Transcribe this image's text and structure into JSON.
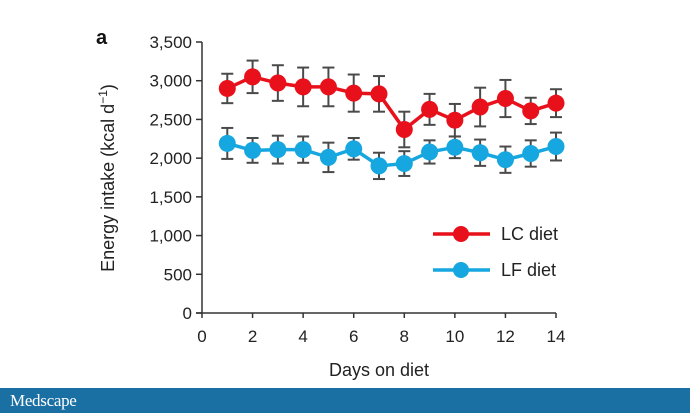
{
  "chart_data": {
    "type": "line",
    "panel_label": "a",
    "title": "",
    "xlabel": "Days on diet",
    "ylabel": "Energy intake (kcal d",
    "ylabel_superscript": "−1",
    "ylabel_close": ")",
    "xlim": [
      0,
      14
    ],
    "ylim": [
      0,
      3500
    ],
    "xticks": [
      0,
      2,
      4,
      6,
      8,
      10,
      12,
      14
    ],
    "xtick_labels": [
      "0",
      "2",
      "4",
      "6",
      "8",
      "10",
      "12",
      "14"
    ],
    "yticks": [
      0,
      500,
      1000,
      1500,
      2000,
      2500,
      3000,
      3500
    ],
    "ytick_labels": [
      "0",
      "500",
      "1,000",
      "1,500",
      "2,000",
      "2,500",
      "3,000",
      "3,500"
    ],
    "grid": false,
    "legend_position": "center-right",
    "x": [
      1,
      2,
      3,
      4,
      5,
      6,
      7,
      8,
      9,
      10,
      11,
      12,
      13,
      14
    ],
    "series": [
      {
        "name": "LC diet",
        "color": "#e8101a",
        "values": [
          2900,
          3050,
          2970,
          2920,
          2920,
          2840,
          2830,
          2370,
          2630,
          2490,
          2660,
          2770,
          2610,
          2710
        ],
        "errors": [
          190,
          210,
          230,
          250,
          250,
          240,
          230,
          230,
          200,
          210,
          250,
          240,
          170,
          180
        ]
      },
      {
        "name": "LF diet",
        "color": "#16a6e0",
        "values": [
          2190,
          2100,
          2110,
          2110,
          2010,
          2120,
          1900,
          1930,
          2080,
          2140,
          2070,
          1980,
          2060,
          2150
        ],
        "errors": [
          200,
          160,
          180,
          170,
          190,
          140,
          170,
          160,
          150,
          140,
          170,
          170,
          170,
          180
        ]
      }
    ],
    "errorbar_color": "#4a4a4a"
  },
  "footer": {
    "logo_text": "Medscape",
    "bar_color": "#1a6fa3"
  }
}
